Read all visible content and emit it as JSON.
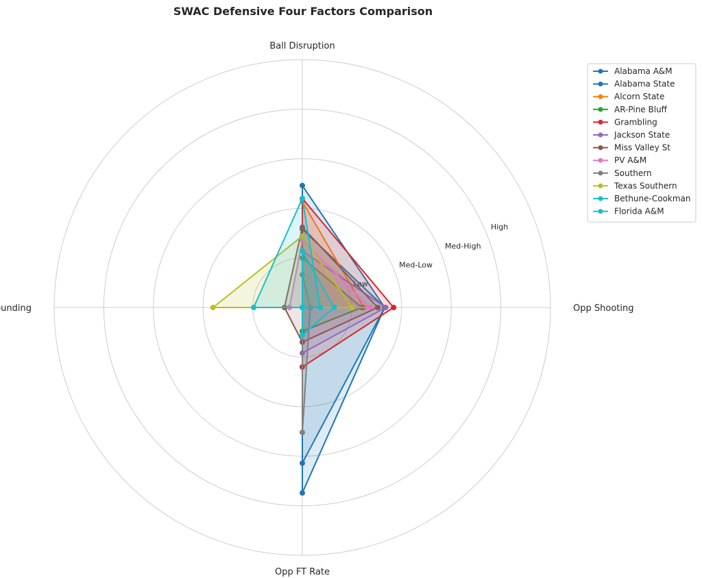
{
  "chart_data": {
    "type": "radar",
    "title": "SWAC Defensive Four Factors Comparison",
    "axes": [
      "Ball Disruption",
      "Opp Shooting",
      "Opp FT Rate",
      "Def Rebounding"
    ],
    "ring_levels": [
      0.5,
      1.0,
      1.5,
      2.0,
      2.5
    ],
    "ring_labels": [
      "Low",
      "Med-Low",
      "Med-High",
      "High"
    ],
    "rmax": 2.5,
    "legend_position": "upper right",
    "grid": true,
    "series": [
      {
        "name": "Alabama A&M",
        "color": "#1f77b4",
        "values": [
          1.23,
          0.83,
          1.87,
          0.0
        ]
      },
      {
        "name": "Alabama State",
        "color": "#1f77b4",
        "values": [
          0.79,
          0.83,
          1.57,
          0.0
        ]
      },
      {
        "name": "Alcorn State",
        "color": "#ff7f0e",
        "values": [
          1.07,
          0.62,
          0.0,
          0.0
        ]
      },
      {
        "name": "AR-Pine Bluff",
        "color": "#2ca02c",
        "values": [
          0.5,
          0.6,
          0.24,
          0.0
        ]
      },
      {
        "name": "Grambling",
        "color": "#d62728",
        "values": [
          1.1,
          0.92,
          0.6,
          0.0
        ]
      },
      {
        "name": "Jackson State",
        "color": "#9467bd",
        "values": [
          0.57,
          0.84,
          0.46,
          0.0
        ]
      },
      {
        "name": "Miss Valley St",
        "color": "#8c564b",
        "values": [
          0.81,
          0.76,
          0.35,
          0.18
        ]
      },
      {
        "name": "PV A&M",
        "color": "#e377c2",
        "values": [
          0.68,
          0.68,
          0.0,
          0.13
        ]
      },
      {
        "name": "Southern",
        "color": "#7f7f7f",
        "values": [
          0.33,
          0.08,
          1.26,
          0.0
        ]
      },
      {
        "name": "Texas Southern",
        "color": "#bcbd22",
        "values": [
          0.72,
          0.5,
          0.0,
          0.9
        ]
      },
      {
        "name": "Bethune-Cookman",
        "color": "#17becf",
        "values": [
          0.57,
          0.32,
          0.28,
          0.0
        ]
      },
      {
        "name": "Florida A&M",
        "color": "#17becf",
        "values": [
          1.1,
          0.18,
          0.0,
          0.49
        ]
      }
    ]
  }
}
